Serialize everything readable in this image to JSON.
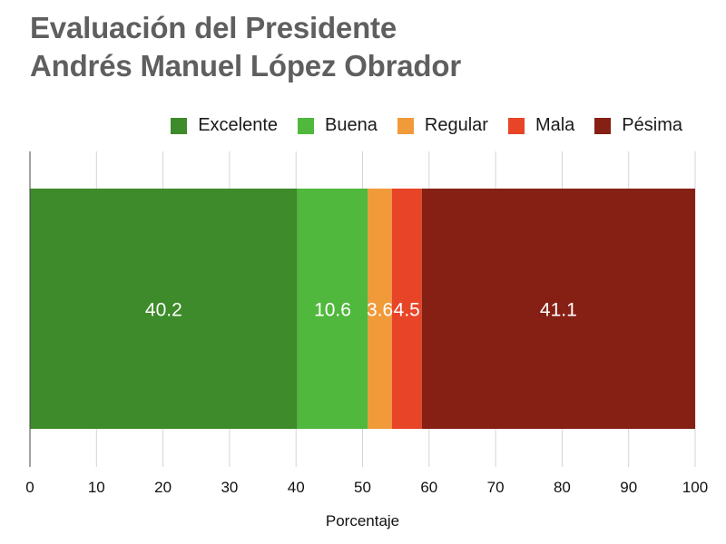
{
  "chart_data": {
    "type": "bar",
    "orientation": "horizontal",
    "stacked": true,
    "title": [
      "Evaluación del Presidente",
      "Andrés Manuel López Obrador"
    ],
    "xlabel": "Porcentaje",
    "ylabel": "",
    "xlim": [
      0,
      100
    ],
    "xticks": [
      0,
      10,
      20,
      30,
      40,
      50,
      60,
      70,
      80,
      90,
      100
    ],
    "grid": true,
    "legend_position": "top-right",
    "categories": [
      ""
    ],
    "series": [
      {
        "name": "Excelente",
        "values": [
          40.2
        ],
        "color": "#3d8b2a"
      },
      {
        "name": "Buena",
        "values": [
          10.6
        ],
        "color": "#50b83c"
      },
      {
        "name": "Regular",
        "values": [
          3.6
        ],
        "color": "#f09a3a"
      },
      {
        "name": "Mala",
        "values": [
          4.5
        ],
        "color": "#e84427"
      },
      {
        "name": "Pésima",
        "values": [
          41.1
        ],
        "color": "#862014"
      }
    ]
  }
}
